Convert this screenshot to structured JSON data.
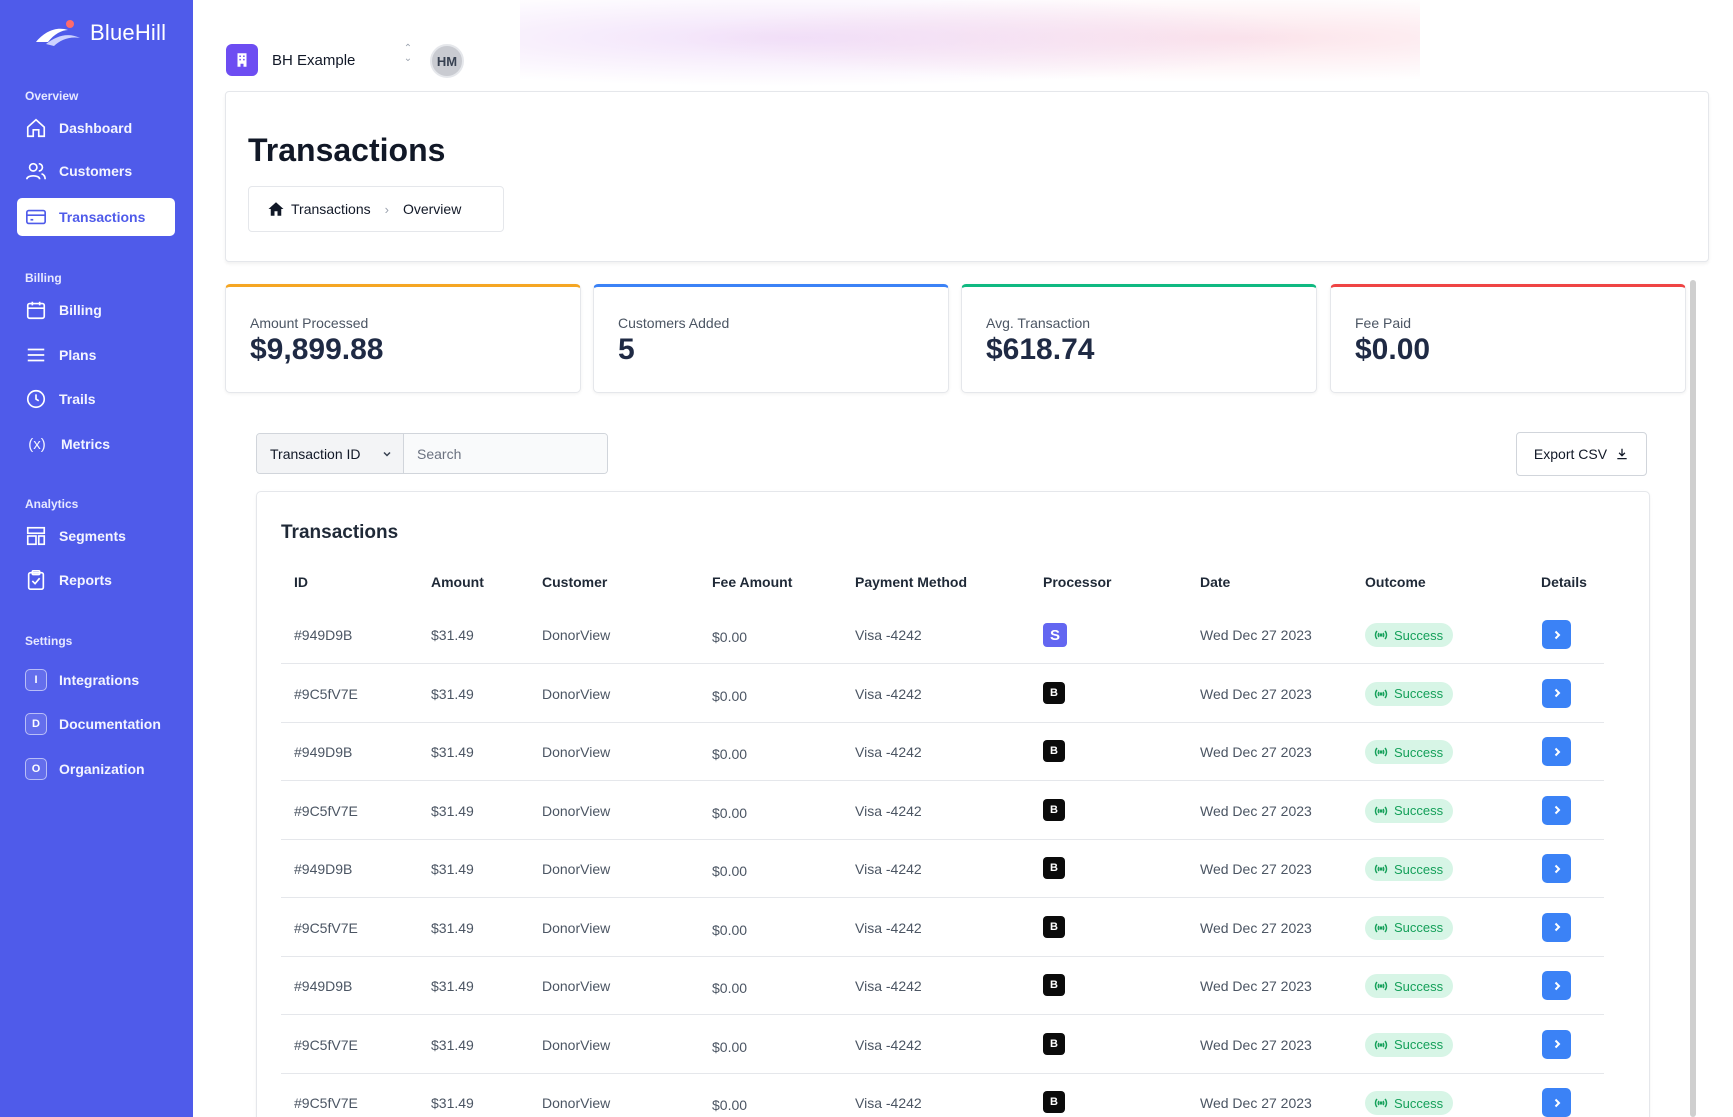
{
  "app": {
    "brand_name": "BlueHill"
  },
  "sidebar": {
    "sections": [
      {
        "label": "Overview"
      },
      {
        "label": "Billing"
      },
      {
        "label": "Analytics"
      },
      {
        "label": "Settings"
      }
    ],
    "items": [
      {
        "label": "Dashboard",
        "icon": "home-icon"
      },
      {
        "label": "Customers",
        "icon": "users-icon"
      },
      {
        "label": "Transactions",
        "icon": "card-icon",
        "active": true
      },
      {
        "label": "Billing",
        "icon": "calendar-icon"
      },
      {
        "label": "Plans",
        "icon": "list-icon"
      },
      {
        "label": "Trails",
        "icon": "clock-icon"
      },
      {
        "label": "Metrics",
        "icon": "variable-icon",
        "glyph": "(x)"
      },
      {
        "label": "Segments",
        "icon": "layout-icon"
      },
      {
        "label": "Reports",
        "icon": "clipboard-icon"
      },
      {
        "label": "Integrations",
        "icon": "letter-i-icon",
        "glyph": "I"
      },
      {
        "label": "Documentation",
        "icon": "letter-d-icon",
        "glyph": "D"
      },
      {
        "label": "Organization",
        "icon": "letter-o-icon",
        "glyph": "O"
      }
    ]
  },
  "org": {
    "name": "BH Example",
    "avatar_initials": "HM"
  },
  "header": {
    "title": "Transactions",
    "breadcrumb": [
      "Transactions",
      "Overview"
    ]
  },
  "stats": [
    {
      "label": "Amount Processed",
      "value": "$9,899.88",
      "accent": "#f5a623"
    },
    {
      "label": "Customers Added",
      "value": "5",
      "accent": "#3b82f6"
    },
    {
      "label": "Avg. Transaction",
      "value": "$618.74",
      "accent": "#10b981"
    },
    {
      "label": "Fee Paid",
      "value": "$0.00",
      "accent": "#ef4444"
    }
  ],
  "filters": {
    "field_selected": "Transaction ID",
    "search_placeholder": "Search",
    "export_label": "Export CSV"
  },
  "table": {
    "title": "Transactions",
    "columns": [
      "ID",
      "Amount",
      "Customer",
      "Fee Amount",
      "Payment Method",
      "Processor",
      "Date",
      "Outcome",
      "Details"
    ],
    "rows": [
      {
        "id": "#949D9B",
        "amount": "$31.49",
        "customer": "DonorView",
        "fee": "$0.00",
        "method": "Visa -4242",
        "processor": "S",
        "date": "Wed Dec 27 2023",
        "outcome": "Success"
      },
      {
        "id": "#9C5fV7E",
        "amount": "$31.49",
        "customer": "DonorView",
        "fee": "$0.00",
        "method": "Visa -4242",
        "processor": "B",
        "date": "Wed Dec 27 2023",
        "outcome": "Success"
      },
      {
        "id": "#949D9B",
        "amount": "$31.49",
        "customer": "DonorView",
        "fee": "$0.00",
        "method": "Visa -4242",
        "processor": "B",
        "date": "Wed Dec 27 2023",
        "outcome": "Success"
      },
      {
        "id": "#9C5fV7E",
        "amount": "$31.49",
        "customer": "DonorView",
        "fee": "$0.00",
        "method": "Visa -4242",
        "processor": "B",
        "date": "Wed Dec 27 2023",
        "outcome": "Success"
      },
      {
        "id": "#949D9B",
        "amount": "$31.49",
        "customer": "DonorView",
        "fee": "$0.00",
        "method": "Visa -4242",
        "processor": "B",
        "date": "Wed Dec 27 2023",
        "outcome": "Success"
      },
      {
        "id": "#9C5fV7E",
        "amount": "$31.49",
        "customer": "DonorView",
        "fee": "$0.00",
        "method": "Visa -4242",
        "processor": "B",
        "date": "Wed Dec 27 2023",
        "outcome": "Success"
      },
      {
        "id": "#949D9B",
        "amount": "$31.49",
        "customer": "DonorView",
        "fee": "$0.00",
        "method": "Visa -4242",
        "processor": "B",
        "date": "Wed Dec 27 2023",
        "outcome": "Success"
      },
      {
        "id": "#9C5fV7E",
        "amount": "$31.49",
        "customer": "DonorView",
        "fee": "$0.00",
        "method": "Visa -4242",
        "processor": "B",
        "date": "Wed Dec 27 2023",
        "outcome": "Success"
      },
      {
        "id": "#9C5fV7E",
        "amount": "$31.49",
        "customer": "DonorView",
        "fee": "$0.00",
        "method": "Visa -4242",
        "processor": "B",
        "date": "Wed Dec 27 2023",
        "outcome": "Success"
      }
    ]
  },
  "colors": {
    "sidebar_bg": "#4f5bea",
    "success_bg": "#d7f5e6",
    "success_text": "#15a05a",
    "action_blue": "#3b82f6",
    "org_purple": "#6d4df2"
  }
}
